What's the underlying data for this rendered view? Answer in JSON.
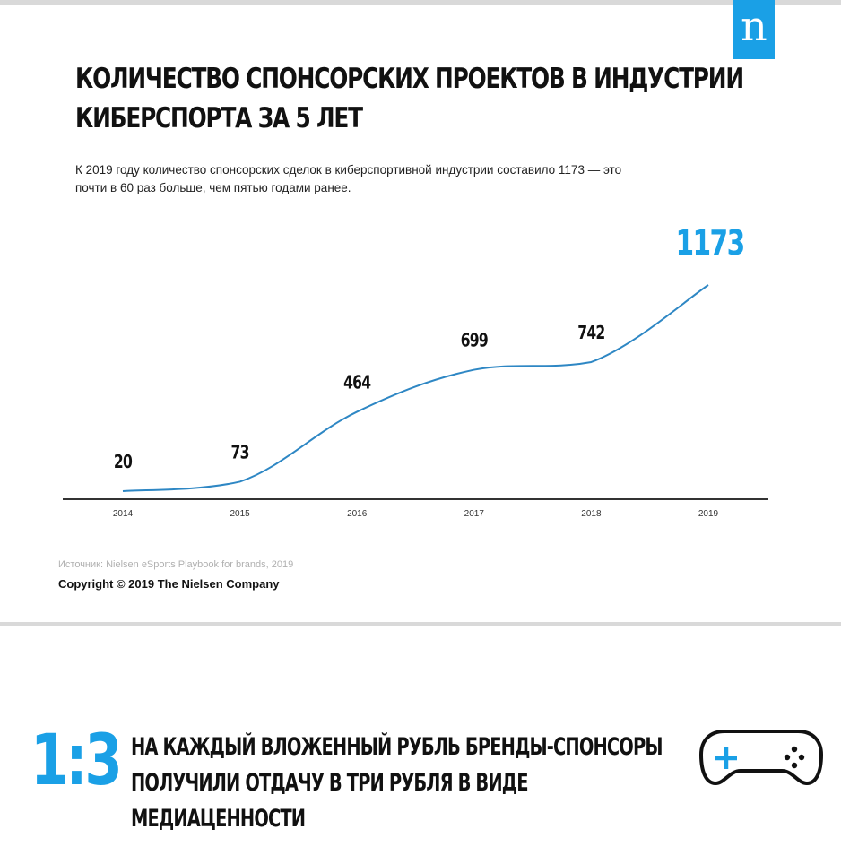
{
  "logo": {
    "letter": "n"
  },
  "header": {
    "title_line1": "КОЛИЧЕСТВО СПОНСОРСКИХ ПРОЕКТОВ В ИНДУСТРИИ",
    "title_line2": "КИБЕРСПОРТА ЗА 5 ЛЕТ",
    "subtitle_line1": "К 2019 году количество спонсорских сделок в киберспортивной индустрии составило 1173 — это",
    "subtitle_line2": "почти в 60 раз больше, чем пятью годами ранее."
  },
  "chart_data": {
    "type": "line",
    "categories": [
      "2014",
      "2015",
      "2016",
      "2017",
      "2018",
      "2019"
    ],
    "values": [
      20,
      73,
      464,
      699,
      742,
      1173
    ],
    "ylim": [
      0,
      1173
    ],
    "grid": false,
    "colors": {
      "line": "#2e87c4",
      "highlight": "#1aa0e6",
      "axis": "#333333"
    }
  },
  "footer": {
    "source": "Источник: Nielsen eSports Playbook for brands, 2019",
    "copyright": "Copyright © 2019 The Nielsen Company"
  },
  "ratio_block": {
    "ratio": "1:3",
    "line1": "НА КАЖДЫЙ ВЛОЖЕННЫЙ РУБЛЬ БРЕНДЫ-СПОНСОРЫ",
    "line2": "ПОЛУЧИЛИ ОТДАЧУ В ТРИ РУБЛЯ В ВИДЕ МЕДИАЦЕННОСТИ",
    "icon": "gamepad-icon",
    "accent_color": "#1aa0e6"
  }
}
